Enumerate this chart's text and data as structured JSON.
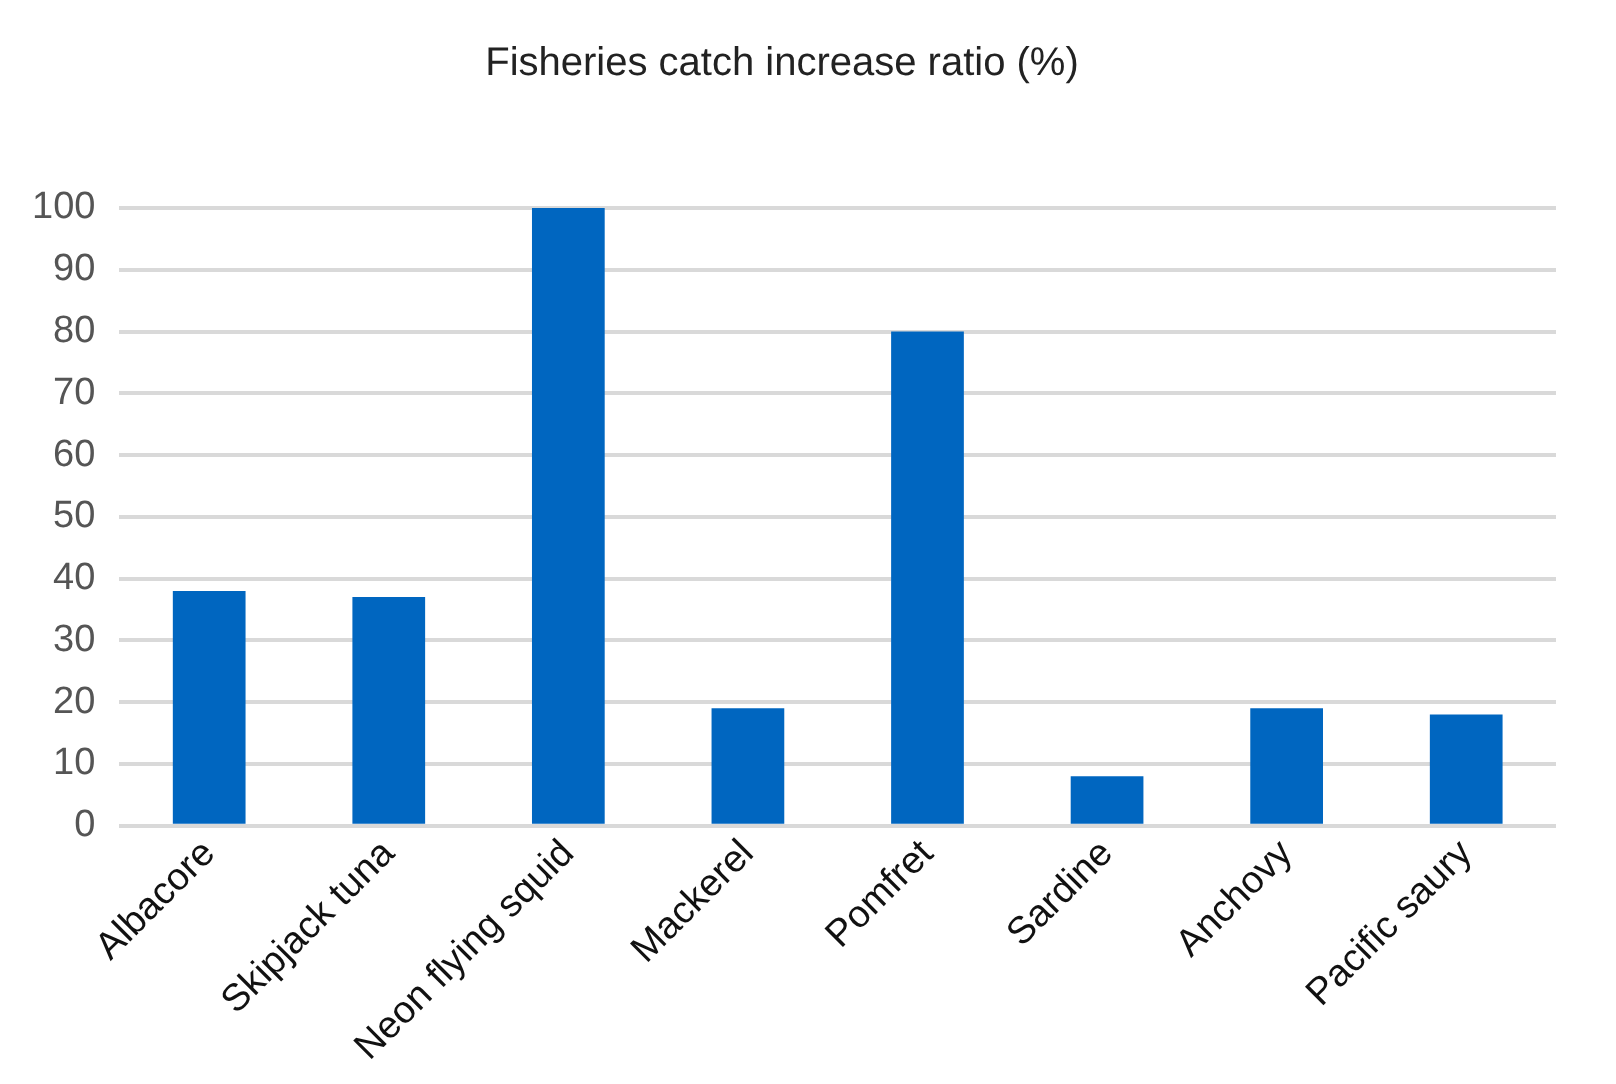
{
  "chart_data": {
    "type": "bar",
    "title": "Fisheries catch increase ratio (%)",
    "categories": [
      "Albacore",
      "Skipjack tuna",
      "Neon flying squid",
      "Mackerel",
      "Pomfret",
      "Sardine",
      "Anchovy",
      "Pacific saury"
    ],
    "values": [
      38,
      37,
      100,
      19,
      80,
      8,
      19,
      18
    ],
    "color": "#0066c0",
    "ylim": [
      0,
      100
    ],
    "yticks": [
      0,
      10,
      20,
      30,
      40,
      50,
      60,
      70,
      80,
      90,
      100
    ],
    "grid": "y",
    "legend": false
  }
}
